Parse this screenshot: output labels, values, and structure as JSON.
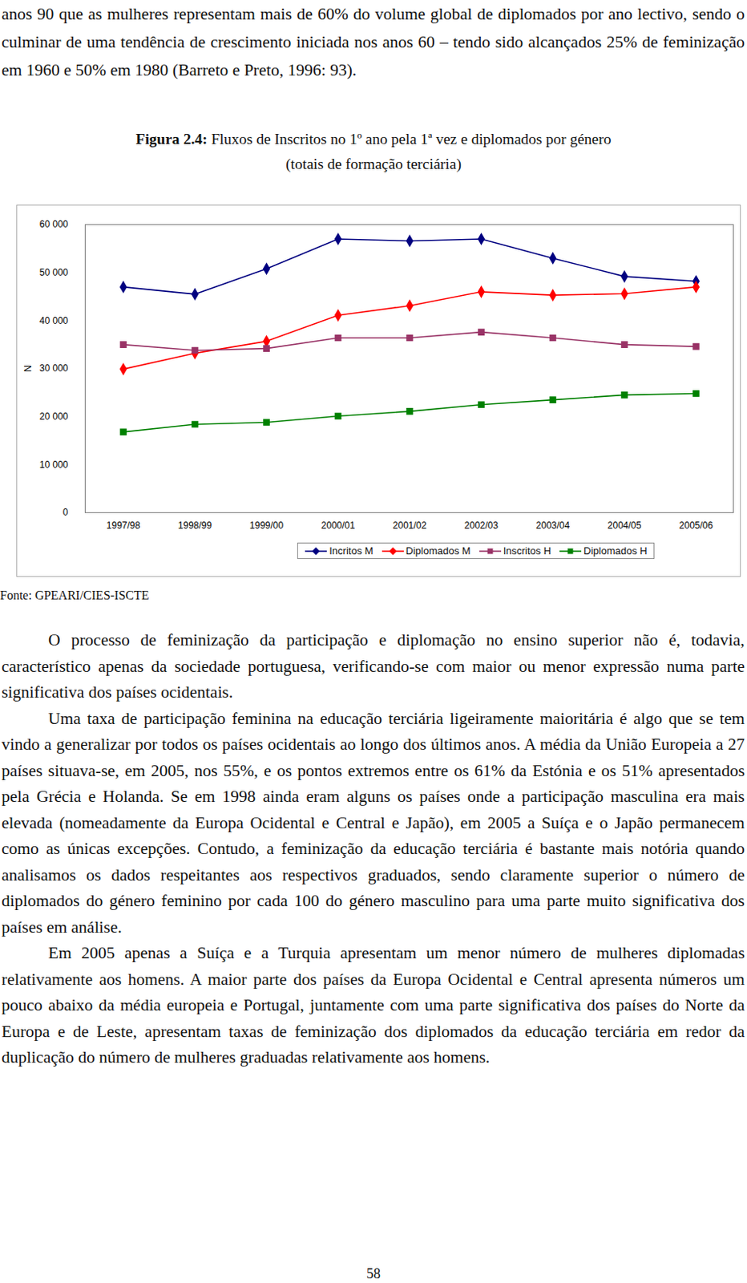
{
  "chart_data": {
    "type": "line",
    "categories": [
      "1997/98",
      "1998/99",
      "1999/00",
      "2000/01",
      "2001/02",
      "2002/03",
      "2003/04",
      "2004/05",
      "2005/06"
    ],
    "series": [
      {
        "name": "Incritos M",
        "color": "#000080",
        "marker": "diamond",
        "values": [
          47000,
          45500,
          50800,
          57000,
          56600,
          57000,
          53000,
          49200,
          48200
        ]
      },
      {
        "name": "Diplomados M",
        "color": "#ff0000",
        "marker": "diamond",
        "values": [
          29900,
          33200,
          35700,
          41100,
          43100,
          46000,
          45300,
          45600,
          47000
        ]
      },
      {
        "name": "Inscritos H",
        "color": "#993366",
        "marker": "square",
        "values": [
          35000,
          33800,
          34200,
          36400,
          36400,
          37600,
          36400,
          35000,
          34600
        ]
      },
      {
        "name": "Diplomados H",
        "color": "#008000",
        "marker": "square",
        "values": [
          16800,
          18400,
          18800,
          20100,
          21100,
          22500,
          23500,
          24500,
          24800
        ]
      }
    ],
    "y_label": "N",
    "ylim": [
      0,
      60000
    ],
    "yticks": [
      0,
      {
        "value": 10000,
        "label": "10 000"
      },
      {
        "value": 20000,
        "label": "20 000"
      },
      {
        "value": 30000,
        "label": "30 000"
      },
      {
        "value": 40000,
        "label": "40 000"
      },
      {
        "value": 50000,
        "label": "50 000"
      },
      {
        "value": 60000,
        "label": "60 000"
      }
    ],
    "grid": false,
    "legend": "bottom"
  },
  "document": {
    "top_paragraph": "anos 90 que as mulheres representam mais de 60% do volume global de diplomados por ano lectivo, sendo o culminar de uma tendência de crescimento iniciada nos anos 60 – tendo sido alcançados 25% de feminização em 1960 e 50% em 1980 (Barreto e Preto, 1996: 93).",
    "figure": {
      "label": "Figura 2.4:",
      "caption_lines": [
        "Fluxos de Inscritos no 1º ano pela 1ª vez e diplomados por género",
        "(totais de formação terciária)"
      ],
      "source": "Fonte: GPEARI/CIES-ISCTE"
    },
    "paragraphs": [
      "O processo de feminização da participação e diplomação no ensino superior não é, todavia, característico apenas da sociedade portuguesa, verificando-se com maior ou menor expressão numa parte significativa dos países ocidentais.",
      "Uma taxa de participação feminina na educação terciária ligeiramente maioritária é algo que se tem vindo a generalizar por todos os países ocidentais ao longo dos últimos anos. A média da União Europeia a 27 países situava-se, em 2005, nos 55%, e os pontos extremos entre os 61% da Estónia e os 51% apresentados pela Grécia e Holanda. Se em 1998 ainda eram alguns os países onde a participação masculina era mais elevada (nomeadamente da Europa Ocidental e Central e Japão), em 2005 a Suíça e o Japão permanecem como as únicas excepções. Contudo, a feminização da educação terciária é bastante mais notória quando analisamos os dados respeitantes aos respectivos graduados, sendo claramente superior o número de diplomados do género feminino por cada 100 do género masculino para uma parte muito significativa dos países em análise.",
      "Em 2005 apenas a Suíça e a Turquia apresentam um menor número de mulheres diplomadas relativamente aos homens. A maior parte dos países da Europa Ocidental e Central apresenta números um pouco abaixo da média europeia e Portugal, juntamente com uma parte significativa dos países do Norte da Europa e de Leste, apresentam taxas de feminização dos diplomados da educação terciária em redor da duplicação do número de mulheres graduadas relativamente aos homens."
    ],
    "page_number": "58"
  }
}
